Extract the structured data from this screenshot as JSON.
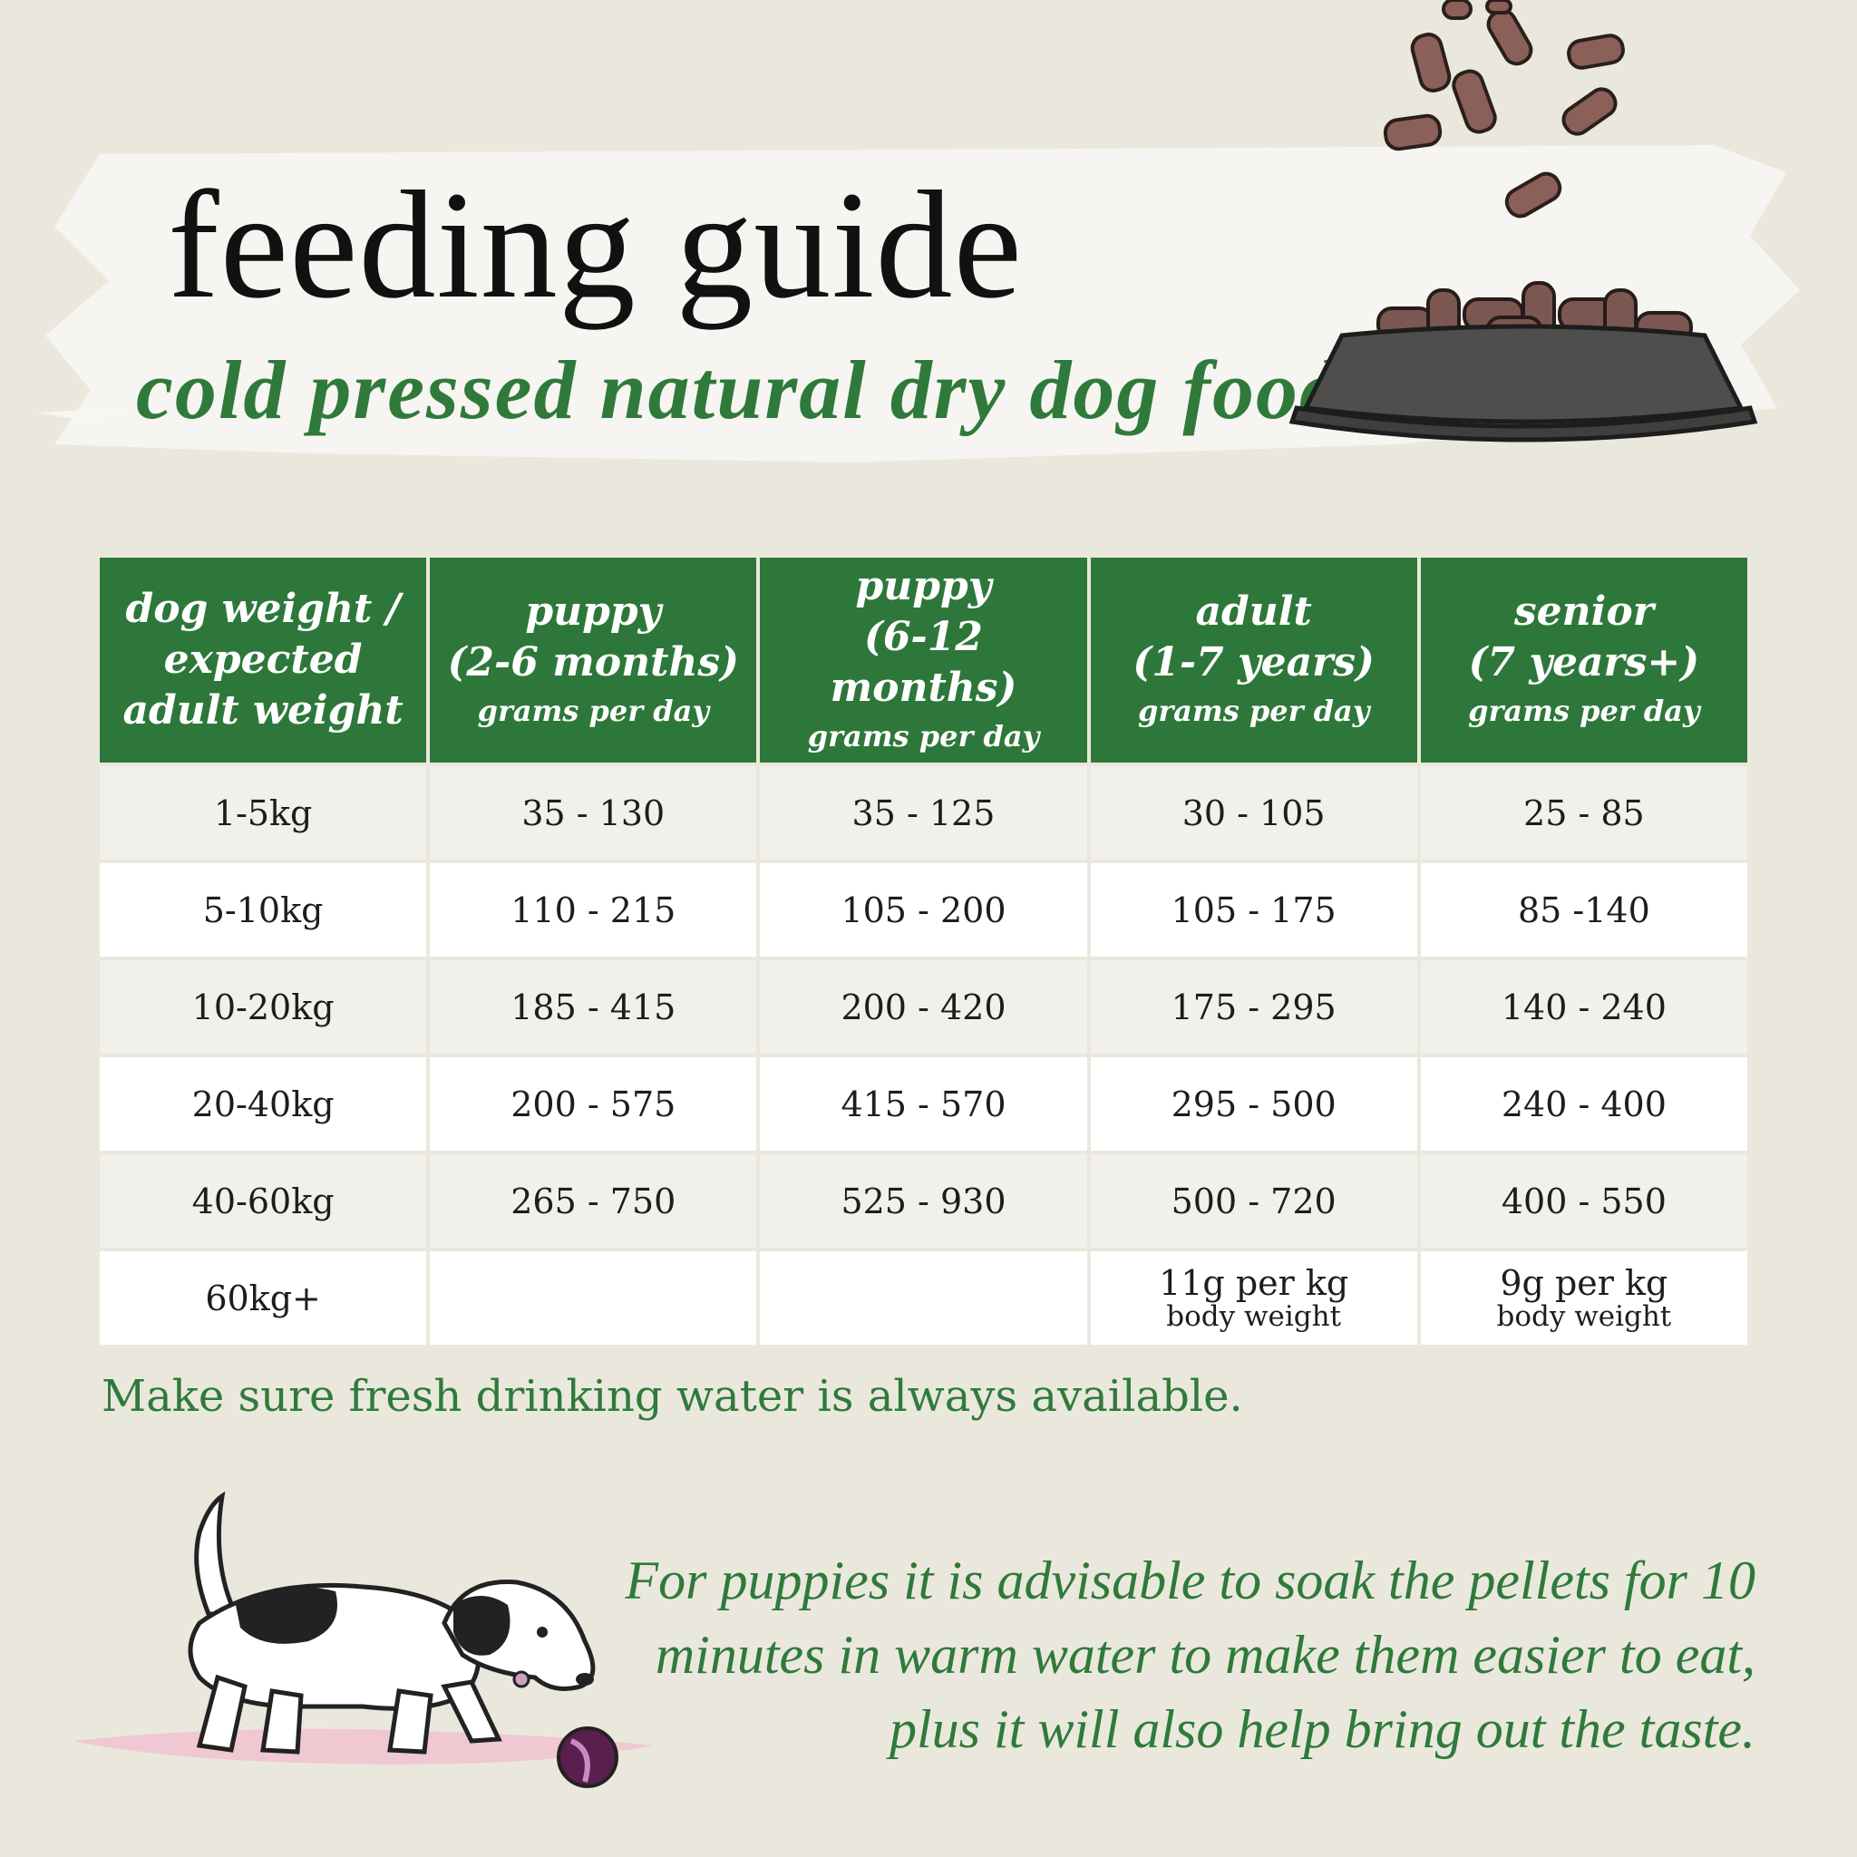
{
  "header": {
    "title": "feeding guide",
    "subtitle": "cold pressed natural dry dog food"
  },
  "table": {
    "headers": [
      {
        "lines": [
          "dog weight /",
          "expected",
          "adult weight"
        ],
        "unit": ""
      },
      {
        "lines": [
          "puppy",
          "(2-6 months)"
        ],
        "unit": "grams per day"
      },
      {
        "lines": [
          "puppy",
          "(6-12 months)"
        ],
        "unit": "grams per day"
      },
      {
        "lines": [
          "adult",
          "(1-7 years)"
        ],
        "unit": "grams per day"
      },
      {
        "lines": [
          "senior",
          "(7 years+)"
        ],
        "unit": "grams per day"
      }
    ],
    "rows": [
      {
        "weight": "1-5kg",
        "cells": [
          "35 - 130",
          "35 - 125",
          "30 - 105",
          "25 - 85"
        ]
      },
      {
        "weight": "5-10kg",
        "cells": [
          "110 - 215",
          "105 - 200",
          "105 - 175",
          "85 -140"
        ]
      },
      {
        "weight": "10-20kg",
        "cells": [
          "185 - 415",
          "200 - 420",
          "175 - 295",
          "140 - 240"
        ]
      },
      {
        "weight": "20-40kg",
        "cells": [
          "200 - 575",
          "415 - 570",
          "295 - 500",
          "240 - 400"
        ]
      },
      {
        "weight": "40-60kg",
        "cells": [
          "265 - 750",
          "525 - 930",
          "500 - 720",
          "400 - 550"
        ]
      }
    ],
    "last_row": {
      "weight": "60kg+",
      "adult_main": "11g per kg",
      "adult_sub": "body weight",
      "senior_main": "9g per kg",
      "senior_sub": "body weight"
    }
  },
  "water_note": "Make sure fresh drinking water is always available.",
  "puppy_note": "For puppies it is advisable to soak the pellets for 10 minutes in warm water to make them easier to eat, plus it will also help bring out the taste.",
  "illustrations": {
    "pellets": "falling-pellets-illustration",
    "bowl": "food-bowl-illustration",
    "dog": "puppy-with-ball-illustration"
  },
  "colors": {
    "green": "#2e773b",
    "text_green": "#2f7a3b",
    "background": "#eae8dd"
  }
}
